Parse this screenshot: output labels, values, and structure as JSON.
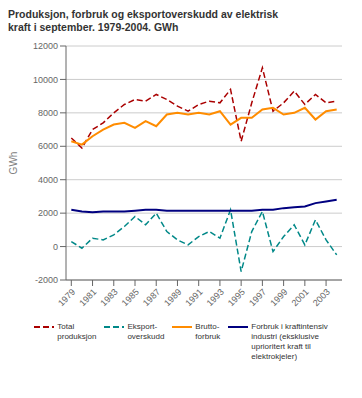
{
  "chart_data": {
    "type": "line",
    "title": "Produksjon, forbruk og eksportoverskudd av elektrisk\nkraft i september. 1979-2004. GWh",
    "ylabel": "GWh",
    "x": [
      1979,
      1980,
      1981,
      1982,
      1983,
      1984,
      1985,
      1986,
      1987,
      1988,
      1989,
      1990,
      1991,
      1992,
      1993,
      1994,
      1995,
      1996,
      1997,
      1998,
      1999,
      2000,
      2001,
      2002,
      2003,
      2004
    ],
    "xlim": [
      1978.5,
      2004.5
    ],
    "xticks": [
      1979,
      1981,
      1983,
      1985,
      1987,
      1989,
      1991,
      1993,
      1995,
      1997,
      1999,
      2001,
      2003
    ],
    "ylim": [
      -2000,
      12000
    ],
    "yticks": [
      -2000,
      0,
      2000,
      4000,
      6000,
      8000,
      10000,
      12000
    ],
    "grid": "y",
    "legend": "bottom",
    "series": [
      {
        "name": "Total\nproduksjon",
        "color": "#aa0000",
        "line_style": "dashed",
        "values": [
          6500,
          5900,
          7000,
          7400,
          8000,
          8500,
          8800,
          8700,
          9100,
          8800,
          8400,
          8100,
          8500,
          8700,
          8600,
          9400,
          6300,
          8600,
          10700,
          8100,
          8600,
          9300,
          8500,
          9100,
          8600,
          8700
        ]
      },
      {
        "name": "Eksport-\noverskudd",
        "color": "#008888",
        "line_style": "dashed",
        "values": [
          300,
          -100,
          500,
          400,
          700,
          1200,
          1800,
          1300,
          2000,
          900,
          400,
          100,
          600,
          900,
          500,
          2200,
          -1500,
          900,
          2100,
          -300,
          600,
          1300,
          100,
          1600,
          400,
          -500
        ]
      },
      {
        "name": "Brutto-\nforbruk",
        "color": "#ff8c00",
        "line_style": "solid",
        "values": [
          6300,
          6100,
          6600,
          7000,
          7300,
          7400,
          7100,
          7500,
          7200,
          7900,
          8000,
          7900,
          8000,
          7900,
          8100,
          7300,
          7700,
          7700,
          8200,
          8300,
          7900,
          8000,
          8300,
          7600,
          8100,
          8200
        ]
      },
      {
        "name": "Forbruk i kraftintensiv\nindustri (eksklusive\nuprioritert kraft til\nelektrokjeler)",
        "color": "#000080",
        "line_style": "solid",
        "values": [
          2200,
          2100,
          2050,
          2100,
          2100,
          2100,
          2150,
          2200,
          2200,
          2150,
          2150,
          2150,
          2150,
          2150,
          2150,
          2150,
          2150,
          2150,
          2200,
          2200,
          2300,
          2350,
          2400,
          2600,
          2700,
          2800
        ]
      }
    ]
  }
}
